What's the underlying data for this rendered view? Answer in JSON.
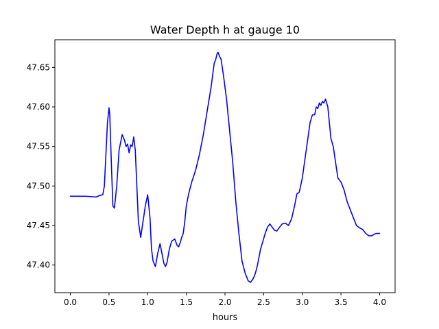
{
  "chart_data": {
    "type": "line",
    "title": "Water Depth h at gauge 10",
    "xlabel": "hours",
    "ylabel": "",
    "xlim": [
      -0.2,
      4.2
    ],
    "ylim": [
      47.365,
      47.685
    ],
    "x_ticks": [
      0.0,
      0.5,
      1.0,
      1.5,
      2.0,
      2.5,
      3.0,
      3.5,
      4.0
    ],
    "x_tick_labels": [
      "0.0",
      "0.5",
      "1.0",
      "1.5",
      "2.0",
      "2.5",
      "3.0",
      "3.5",
      "4.0"
    ],
    "y_ticks": [
      47.4,
      47.45,
      47.5,
      47.55,
      47.6,
      47.65
    ],
    "y_tick_labels": [
      "47.40",
      "47.45",
      "47.50",
      "47.55",
      "47.60",
      "47.65"
    ],
    "grid": false,
    "series": [
      {
        "color": "#0000ff",
        "x": [
          0.0,
          0.2,
          0.33,
          0.38,
          0.42,
          0.44,
          0.46,
          0.48,
          0.5,
          0.51,
          0.53,
          0.55,
          0.57,
          0.6,
          0.63,
          0.67,
          0.7,
          0.72,
          0.74,
          0.76,
          0.78,
          0.8,
          0.82,
          0.84,
          0.86,
          0.88,
          0.91,
          0.94,
          0.97,
          1.0,
          1.03,
          1.05,
          1.07,
          1.1,
          1.13,
          1.16,
          1.19,
          1.21,
          1.23,
          1.25,
          1.28,
          1.31,
          1.35,
          1.38,
          1.4,
          1.42,
          1.44,
          1.46,
          1.48,
          1.5,
          1.53,
          1.57,
          1.62,
          1.67,
          1.72,
          1.77,
          1.82,
          1.86,
          1.88,
          1.9,
          1.91,
          1.93,
          1.95,
          1.98,
          2.02,
          2.06,
          2.1,
          2.14,
          2.18,
          2.22,
          2.26,
          2.3,
          2.33,
          2.36,
          2.38,
          2.4,
          2.42,
          2.44,
          2.46,
          2.49,
          2.52,
          2.55,
          2.58,
          2.61,
          2.64,
          2.67,
          2.7,
          2.74,
          2.78,
          2.82,
          2.86,
          2.9,
          2.93,
          2.96,
          3.0,
          3.05,
          3.1,
          3.13,
          3.16,
          3.18,
          3.2,
          3.22,
          3.24,
          3.26,
          3.28,
          3.3,
          3.33,
          3.35,
          3.37,
          3.4,
          3.43,
          3.46,
          3.5,
          3.54,
          3.58,
          3.62,
          3.66,
          3.7,
          3.74,
          3.78,
          3.82,
          3.86,
          3.9,
          3.93,
          3.96,
          4.0
        ],
        "y": [
          47.487,
          47.487,
          47.486,
          47.488,
          47.489,
          47.5,
          47.54,
          47.58,
          47.599,
          47.59,
          47.53,
          47.475,
          47.472,
          47.5,
          47.545,
          47.565,
          47.558,
          47.55,
          47.553,
          47.542,
          47.552,
          47.55,
          47.562,
          47.545,
          47.5,
          47.455,
          47.435,
          47.455,
          47.475,
          47.489,
          47.46,
          47.42,
          47.405,
          47.398,
          47.415,
          47.427,
          47.412,
          47.402,
          47.398,
          47.403,
          47.42,
          47.43,
          47.433,
          47.425,
          47.423,
          47.428,
          47.435,
          47.44,
          47.455,
          47.475,
          47.49,
          47.505,
          47.52,
          47.54,
          47.565,
          47.595,
          47.625,
          47.655,
          47.66,
          47.668,
          47.669,
          47.664,
          47.66,
          47.64,
          47.61,
          47.57,
          47.53,
          47.48,
          47.44,
          47.405,
          47.39,
          47.38,
          47.378,
          47.382,
          47.386,
          47.392,
          47.4,
          47.41,
          47.42,
          47.43,
          47.44,
          47.448,
          47.452,
          47.448,
          47.444,
          47.443,
          47.447,
          47.452,
          47.453,
          47.45,
          47.458,
          47.475,
          47.49,
          47.492,
          47.51,
          47.545,
          47.58,
          47.59,
          47.59,
          47.6,
          47.598,
          47.605,
          47.602,
          47.607,
          47.605,
          47.61,
          47.6,
          47.58,
          47.56,
          47.55,
          47.53,
          47.51,
          47.505,
          47.495,
          47.48,
          47.47,
          47.46,
          47.45,
          47.447,
          47.445,
          47.44,
          47.437,
          47.437,
          47.439,
          47.44,
          47.44
        ]
      }
    ]
  }
}
